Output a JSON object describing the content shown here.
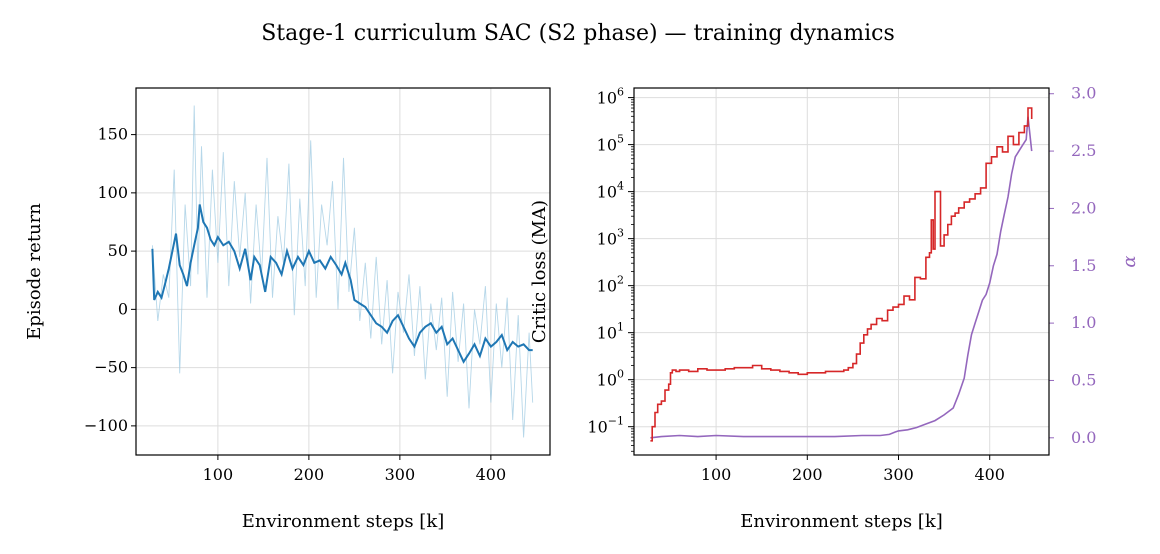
{
  "figure": {
    "title": "Stage-1 curriculum SAC (S2 phase) — training dynamics"
  },
  "chart_data": [
    {
      "type": "line",
      "xlabel": "Environment steps [k]",
      "ylabel": "Episode return",
      "xlim": [
        10,
        465
      ],
      "ylim": [
        -125,
        190
      ],
      "xticks": [
        100,
        200,
        300,
        400
      ],
      "yticks": [
        -100,
        -50,
        0,
        50,
        100,
        150
      ],
      "ytick_labels": [
        "−100",
        "−50",
        "0",
        "50",
        "100",
        "150"
      ],
      "grid": true,
      "colors": {
        "smoothed": "#1f77b4",
        "raw": "#9ecae1"
      },
      "series": [
        {
          "style": "raw",
          "x": [
            28,
            34,
            40,
            46,
            52,
            58,
            64,
            70,
            74,
            78,
            82,
            88,
            94,
            100,
            106,
            112,
            118,
            124,
            130,
            136,
            142,
            148,
            154,
            160,
            166,
            172,
            178,
            184,
            190,
            196,
            202,
            208,
            214,
            220,
            226,
            232,
            238,
            244,
            250,
            256,
            262,
            268,
            274,
            280,
            286,
            292,
            298,
            304,
            310,
            316,
            322,
            328,
            334,
            340,
            346,
            352,
            358,
            364,
            370,
            376,
            382,
            388,
            394,
            400,
            406,
            412,
            418,
            424,
            430,
            436,
            442,
            446
          ],
          "y": [
            55,
            -10,
            30,
            10,
            120,
            -55,
            90,
            20,
            175,
            30,
            140,
            10,
            120,
            40,
            135,
            20,
            110,
            45,
            100,
            5,
            90,
            30,
            130,
            10,
            80,
            40,
            125,
            -5,
            95,
            20,
            145,
            10,
            90,
            55,
            110,
            0,
            130,
            15,
            70,
            -10,
            40,
            -25,
            45,
            -30,
            25,
            -55,
            15,
            -20,
            30,
            -40,
            20,
            -60,
            5,
            -35,
            10,
            -75,
            15,
            -45,
            5,
            -85,
            0,
            -30,
            20,
            -80,
            5,
            -50,
            10,
            -95,
            -5,
            -110,
            -20,
            -80
          ]
        },
        {
          "style": "smoothed",
          "x": [
            28,
            30,
            34,
            38,
            42,
            46,
            50,
            54,
            58,
            62,
            66,
            70,
            74,
            78,
            80,
            84,
            88,
            92,
            96,
            100,
            106,
            112,
            118,
            124,
            130,
            136,
            140,
            146,
            152,
            158,
            164,
            170,
            176,
            182,
            188,
            194,
            200,
            206,
            212,
            218,
            224,
            230,
            236,
            240,
            246,
            250,
            256,
            262,
            268,
            274,
            280,
            286,
            292,
            298,
            304,
            310,
            316,
            322,
            328,
            334,
            340,
            346,
            352,
            358,
            364,
            370,
            376,
            382,
            388,
            394,
            400,
            406,
            412,
            418,
            424,
            430,
            436,
            442,
            446
          ],
          "y": [
            52,
            8,
            15,
            10,
            22,
            35,
            50,
            65,
            38,
            30,
            20,
            40,
            55,
            70,
            90,
            75,
            70,
            60,
            55,
            62,
            55,
            58,
            50,
            35,
            52,
            25,
            45,
            38,
            15,
            45,
            40,
            30,
            50,
            35,
            45,
            38,
            50,
            40,
            42,
            35,
            45,
            38,
            30,
            40,
            25,
            8,
            5,
            2,
            -5,
            -12,
            -15,
            -20,
            -10,
            -5,
            -15,
            -25,
            -32,
            -20,
            -15,
            -12,
            -20,
            -15,
            -30,
            -25,
            -35,
            -45,
            -38,
            -30,
            -40,
            -25,
            -32,
            -28,
            -22,
            -35,
            -28,
            -32,
            -30,
            -35,
            -35
          ]
        }
      ]
    },
    {
      "type": "line",
      "xlabel": "Environment steps [k]",
      "ylabel": "Critic loss (MA)",
      "ylabel_right": "α",
      "xlim": [
        10,
        465
      ],
      "yscale": "log",
      "ylim": [
        0.025,
        1600000
      ],
      "yticks": [
        0.1,
        1,
        10,
        100,
        1000,
        10000,
        100000,
        1000000
      ],
      "ytick_labels": [
        [
          "10",
          "−1"
        ],
        [
          "10",
          "0"
        ],
        [
          "10",
          "1"
        ],
        [
          "10",
          "2"
        ],
        [
          "10",
          "3"
        ],
        [
          "10",
          "4"
        ],
        [
          "10",
          "5"
        ],
        [
          "10",
          "6"
        ]
      ],
      "y2lim": [
        -0.15,
        3.05
      ],
      "y2ticks": [
        0.0,
        0.5,
        1.0,
        1.5,
        2.0,
        2.5,
        3.0
      ],
      "y2tick_labels": [
        "0.0",
        "0.5",
        "1.0",
        "1.5",
        "2.0",
        "2.5",
        "3.0"
      ],
      "xticks": [
        100,
        200,
        300,
        400
      ],
      "grid": true,
      "colors": {
        "critic": "#d62728",
        "alpha": "#9467bd"
      },
      "series": [
        {
          "style": "critic",
          "axis": "left",
          "x": [
            28,
            30,
            33,
            36,
            40,
            44,
            48,
            50,
            52,
            56,
            60,
            70,
            80,
            90,
            100,
            110,
            120,
            130,
            140,
            150,
            160,
            170,
            180,
            190,
            200,
            210,
            220,
            230,
            240,
            245,
            250,
            254,
            258,
            262,
            266,
            270,
            276,
            282,
            288,
            294,
            300,
            306,
            312,
            318,
            324,
            330,
            334,
            336,
            338,
            340,
            344,
            346,
            350,
            354,
            358,
            362,
            366,
            372,
            378,
            384,
            390,
            396,
            402,
            408,
            414,
            420,
            426,
            432,
            438,
            442,
            446
          ],
          "y": [
            0.05,
            0.1,
            0.2,
            0.3,
            0.35,
            0.6,
            0.8,
            1.4,
            1.6,
            1.5,
            1.6,
            1.5,
            1.7,
            1.6,
            1.6,
            1.7,
            1.8,
            1.8,
            2.0,
            1.7,
            1.6,
            1.5,
            1.4,
            1.3,
            1.4,
            1.4,
            1.5,
            1.5,
            1.6,
            1.8,
            2.2,
            3.5,
            6,
            9,
            12,
            15,
            20,
            18,
            30,
            35,
            40,
            60,
            50,
            150,
            140,
            400,
            500,
            2500,
            600,
            10000,
            10000,
            700,
            1200,
            2000,
            3000,
            3500,
            4500,
            6000,
            7000,
            9000,
            12000,
            40000,
            55000,
            90000,
            70000,
            150000,
            100000,
            180000,
            250000,
            600000,
            350000
          ]
        },
        {
          "style": "alpha",
          "axis": "right",
          "x": [
            28,
            40,
            60,
            80,
            100,
            130,
            160,
            200,
            230,
            260,
            280,
            290,
            296,
            300,
            310,
            320,
            330,
            340,
            350,
            360,
            366,
            372,
            376,
            380,
            384,
            388,
            392,
            396,
            400,
            404,
            408,
            412,
            416,
            420,
            424,
            428,
            432,
            436,
            440,
            442,
            446
          ],
          "y": [
            0.0,
            0.01,
            0.02,
            0.01,
            0.02,
            0.01,
            0.01,
            0.01,
            0.01,
            0.02,
            0.02,
            0.03,
            0.05,
            0.06,
            0.07,
            0.09,
            0.12,
            0.15,
            0.2,
            0.26,
            0.38,
            0.52,
            0.72,
            0.9,
            1.0,
            1.1,
            1.2,
            1.25,
            1.35,
            1.5,
            1.6,
            1.8,
            1.95,
            2.1,
            2.3,
            2.45,
            2.5,
            2.55,
            2.6,
            2.8,
            2.5
          ]
        }
      ]
    }
  ]
}
